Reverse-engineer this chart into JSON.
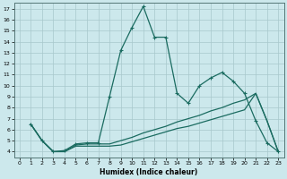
{
  "xlabel": "Humidex (Indice chaleur)",
  "bg_color": "#cce8ec",
  "line_color": "#1a6b60",
  "grid_color": "#a8c8cc",
  "xlim": [
    -0.5,
    23.5
  ],
  "ylim": [
    3.5,
    17.5
  ],
  "yticks": [
    4,
    5,
    6,
    7,
    8,
    9,
    10,
    11,
    12,
    13,
    14,
    15,
    16,
    17
  ],
  "xticks": [
    0,
    1,
    2,
    3,
    4,
    5,
    6,
    7,
    8,
    9,
    10,
    11,
    12,
    13,
    14,
    15,
    16,
    17,
    18,
    19,
    20,
    21,
    22,
    23
  ],
  "curve1_x": [
    1,
    2,
    3,
    4,
    5,
    6,
    7,
    8,
    9,
    10,
    11,
    12,
    13,
    14,
    15,
    16,
    17,
    18,
    19,
    20,
    21,
    22,
    23
  ],
  "curve1_y": [
    6.5,
    5.0,
    4.0,
    4.1,
    4.7,
    4.8,
    4.8,
    9.0,
    13.2,
    15.3,
    17.2,
    14.4,
    14.4,
    9.3,
    8.4,
    10.0,
    10.7,
    11.2,
    10.4,
    9.3,
    6.8,
    4.8,
    4.0
  ],
  "curve2_x": [
    1,
    2,
    3,
    4,
    5,
    6,
    7,
    8,
    9,
    10,
    11,
    12,
    13,
    14,
    15,
    16,
    17,
    18,
    19,
    20,
    21,
    22,
    23
  ],
  "curve2_y": [
    6.5,
    5.0,
    4.0,
    4.0,
    4.6,
    4.7,
    4.7,
    4.7,
    5.0,
    5.3,
    5.7,
    6.0,
    6.3,
    6.7,
    7.0,
    7.3,
    7.7,
    8.0,
    8.4,
    8.7,
    9.3,
    6.8,
    4.0
  ],
  "curve3_x": [
    1,
    2,
    3,
    4,
    5,
    6,
    7,
    8,
    9,
    10,
    11,
    12,
    13,
    14,
    15,
    16,
    17,
    18,
    19,
    20,
    21,
    22,
    23
  ],
  "curve3_y": [
    6.5,
    5.0,
    4.0,
    4.0,
    4.5,
    4.5,
    4.5,
    4.5,
    4.6,
    4.9,
    5.2,
    5.5,
    5.8,
    6.1,
    6.3,
    6.6,
    6.9,
    7.2,
    7.5,
    7.8,
    9.3,
    6.8,
    4.0
  ]
}
